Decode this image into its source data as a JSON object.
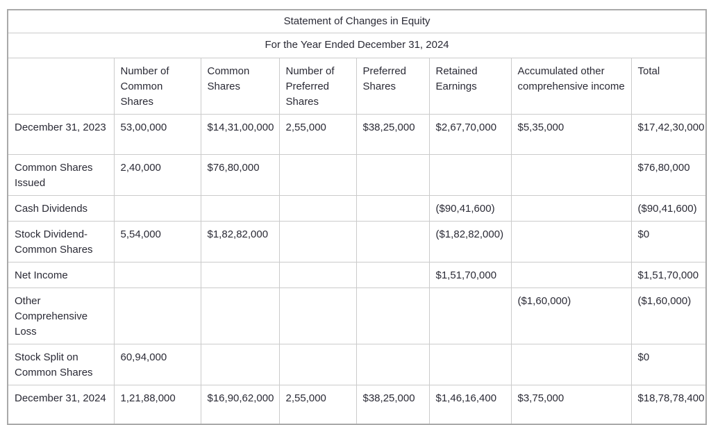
{
  "document": {
    "title": "Statement of Changes in Equity",
    "subtitle": "For the Year Ended December 31, 2024",
    "colors": {
      "text": "#2a2a35",
      "grid_line": "#cbcbcb",
      "outer_border": "#a9a9a9",
      "background": "#ffffff"
    },
    "columns": [
      "",
      "Number of\nCommon Shares",
      "Common\nShares",
      "Number of\nPreferred\nShares",
      "Preferred\nShares",
      "Retained\nEarnings",
      "Accumulated other\ncomprehensive income",
      "Total"
    ],
    "rows": [
      {
        "label": "December 31, 2023",
        "cells": [
          "53,00,000",
          "$14,31,00,000",
          "2,55,000",
          "$38,25,000",
          "$2,67,70,000",
          "$5,35,000",
          "$17,42,30,000"
        ]
      },
      {
        "label": "Common Shares\nIssued",
        "cells": [
          "2,40,000",
          "$76,80,000",
          "",
          "",
          "",
          "",
          "$76,80,000"
        ]
      },
      {
        "label": "Cash Dividends",
        "cells": [
          "",
          "",
          "",
          "",
          "($90,41,600)",
          "",
          "($90,41,600)"
        ]
      },
      {
        "label": "Stock Dividend-\nCommon Shares",
        "cells": [
          "5,54,000",
          "$1,82,82,000",
          "",
          "",
          "($1,82,82,000)",
          "",
          "$0"
        ]
      },
      {
        "label": "Net Income",
        "cells": [
          "",
          "",
          "",
          "",
          "$1,51,70,000",
          "",
          "$1,51,70,000"
        ]
      },
      {
        "label": "Other\nComprehensive Loss",
        "cells": [
          "",
          "",
          "",
          "",
          "",
          "($1,60,000)",
          "($1,60,000)"
        ]
      },
      {
        "label": "Stock Split on\nCommon Shares",
        "cells": [
          "60,94,000",
          "",
          "",
          "",
          "",
          "",
          "$0"
        ]
      },
      {
        "label": "December 31, 2024",
        "cells": [
          "1,21,88,000",
          "$16,90,62,000",
          "2,55,000",
          "$38,25,000",
          "$1,46,16,400",
          "$3,75,000",
          "$18,78,78,400"
        ]
      }
    ]
  }
}
